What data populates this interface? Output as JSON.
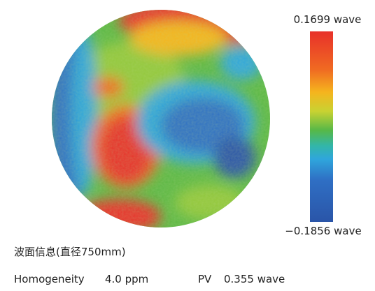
{
  "colorbar": {
    "max_label": "0.1699 wave",
    "min_label": "−0.1856 wave"
  },
  "caption": "波面信息(直径750mm)",
  "stats": {
    "homogeneity_label": "Homogeneity",
    "homogeneity_value": "4.0 ppm",
    "pv_label": "PV",
    "pv_value": "0.355 wave"
  }
}
